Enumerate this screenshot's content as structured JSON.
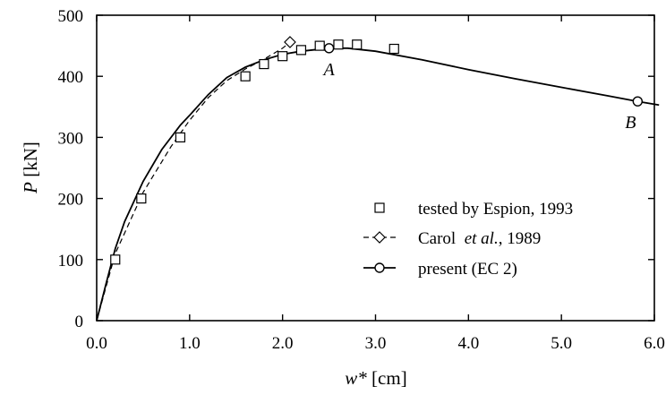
{
  "chart_data": {
    "type": "line",
    "xlabel": {
      "symbol": "w*",
      "unit": "[cm]"
    },
    "ylabel": {
      "symbol": "P",
      "unit": "[kN]"
    },
    "xlim": [
      0,
      6.0
    ],
    "ylim": [
      0,
      500
    ],
    "xticks": [
      "0.0",
      "1.0",
      "2.0",
      "3.0",
      "4.0",
      "5.0",
      "6.0"
    ],
    "yticks": [
      "0",
      "100",
      "200",
      "300",
      "400",
      "500"
    ],
    "grid": false,
    "legend_position": "right",
    "series": [
      {
        "name": "tested by Espion, 1993",
        "style": "markers",
        "marker": "square",
        "points": [
          [
            0.2,
            100
          ],
          [
            0.48,
            200
          ],
          [
            0.9,
            300
          ],
          [
            1.6,
            400
          ],
          [
            1.8,
            420
          ],
          [
            2.0,
            433
          ],
          [
            2.2,
            443
          ],
          [
            2.4,
            450
          ],
          [
            2.6,
            452
          ],
          [
            2.8,
            452
          ],
          [
            3.2,
            445
          ]
        ]
      },
      {
        "name": "Carol  et al., 1989",
        "name_parts": {
          "before": "Carol  ",
          "italic": "et al.",
          "after": ", 1989"
        },
        "style": "dashed",
        "marker": "diamond",
        "end_marker": [
          2.08,
          456
        ],
        "points": [
          [
            0,
            0
          ],
          [
            0.2,
            110
          ],
          [
            0.5,
            210
          ],
          [
            0.8,
            285
          ],
          [
            1.0,
            328
          ],
          [
            1.2,
            365
          ],
          [
            1.4,
            393
          ],
          [
            1.6,
            412
          ],
          [
            1.8,
            428
          ],
          [
            2.0,
            446
          ],
          [
            2.08,
            456
          ]
        ]
      },
      {
        "name": "present (EC 2)",
        "style": "solid",
        "marker": "circle",
        "points": [
          [
            0,
            0
          ],
          [
            0.1,
            60
          ],
          [
            0.2,
            118
          ],
          [
            0.3,
            162
          ],
          [
            0.5,
            228
          ],
          [
            0.7,
            280
          ],
          [
            0.9,
            320
          ],
          [
            1.0,
            336
          ],
          [
            1.2,
            370
          ],
          [
            1.4,
            398
          ],
          [
            1.6,
            415
          ],
          [
            1.8,
            427
          ],
          [
            2.0,
            436
          ],
          [
            2.2,
            441
          ],
          [
            2.5,
            446
          ],
          [
            2.7,
            446
          ],
          [
            3.0,
            441
          ],
          [
            3.5,
            427
          ],
          [
            4.0,
            411
          ],
          [
            4.5,
            396
          ],
          [
            5.0,
            382
          ],
          [
            5.5,
            368
          ],
          [
            5.82,
            359
          ],
          [
            6.05,
            353
          ]
        ],
        "labeled_points": [
          {
            "label": "A",
            "x": 2.5,
            "y": 446
          },
          {
            "label": "B",
            "x": 5.82,
            "y": 359
          }
        ]
      }
    ]
  }
}
